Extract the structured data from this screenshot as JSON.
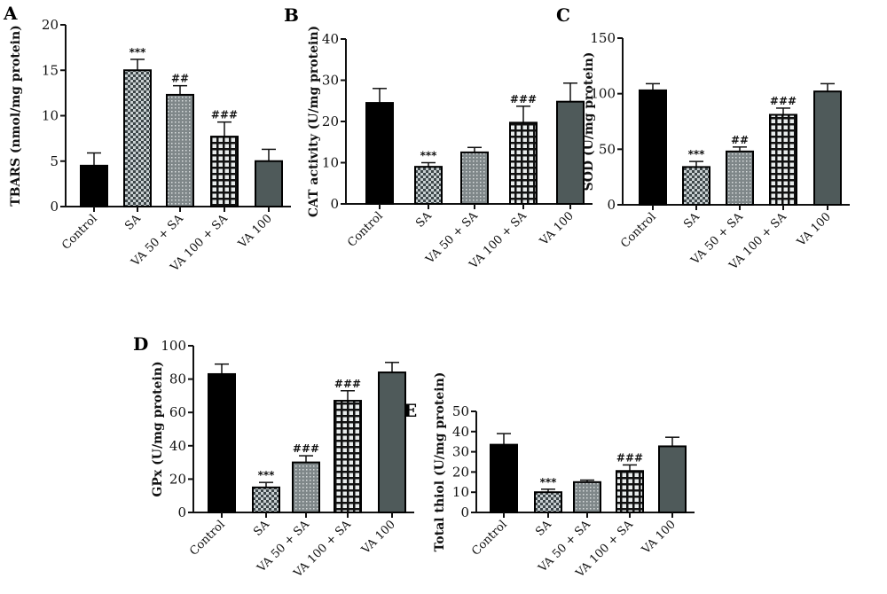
{
  "chart_data": [
    {
      "type": "bar",
      "panel_label": "A",
      "ylabel": "TBARS (nmol/mg protein)",
      "ylim": [
        0,
        20
      ],
      "yticks": [
        0,
        5,
        10,
        15,
        20
      ],
      "categories": [
        "Control",
        "SA",
        "VA 50 + SA",
        "VA 100 + SA",
        "VA 100"
      ],
      "values": [
        4.5,
        15,
        12.3,
        7.7,
        5
      ],
      "errors": [
        1.4,
        1.2,
        1,
        1.6,
        1.3
      ],
      "annotations": [
        "",
        "***",
        "##",
        "###",
        ""
      ]
    },
    {
      "type": "bar",
      "panel_label": "B",
      "ylabel": "CAT activity (U/mg protein)",
      "ylim": [
        0,
        40
      ],
      "yticks": [
        0,
        10,
        20,
        30,
        40
      ],
      "categories": [
        "Control",
        "SA",
        "VA 50 + SA",
        "VA 100 + SA",
        "VA 100"
      ],
      "values": [
        24.5,
        9,
        12.5,
        19.7,
        24.8
      ],
      "errors": [
        3.5,
        1,
        1.2,
        4,
        4.5
      ],
      "annotations": [
        "",
        "***",
        "",
        "###",
        ""
      ]
    },
    {
      "type": "bar",
      "panel_label": "C",
      "ylabel": "SOD (U/mg protein)",
      "ylim": [
        0,
        150
      ],
      "yticks": [
        0,
        50,
        100,
        150
      ],
      "categories": [
        "Control",
        "SA",
        "VA 50 + SA",
        "VA 100 + SA",
        "VA 100"
      ],
      "values": [
        103,
        34,
        48,
        81,
        102
      ],
      "errors": [
        6,
        5,
        4,
        6,
        7
      ],
      "annotations": [
        "",
        "***",
        "##",
        "###",
        ""
      ]
    },
    {
      "type": "bar",
      "panel_label": "D",
      "ylabel": "GPx (U/mg protein)",
      "ylim": [
        0,
        100
      ],
      "yticks": [
        0,
        20,
        40,
        60,
        80,
        100
      ],
      "categories": [
        "Control",
        "SA",
        "VA 50 + SA",
        "VA 100 + SA",
        "VA 100"
      ],
      "values": [
        83,
        15,
        30,
        67,
        84
      ],
      "errors": [
        6,
        3,
        4,
        6,
        6
      ],
      "annotations": [
        "",
        "***",
        "###",
        "###",
        ""
      ]
    },
    {
      "type": "bar",
      "panel_label": "E",
      "ylabel": "Total thiol (U/mg protein)",
      "ylim": [
        0,
        50
      ],
      "yticks": [
        0,
        10,
        20,
        30,
        40,
        50
      ],
      "categories": [
        "Control",
        "SA",
        "VA 50 + SA",
        "VA 100 + SA",
        "VA 100"
      ],
      "values": [
        33.5,
        10,
        15,
        20.5,
        32.7
      ],
      "errors": [
        5.5,
        1.5,
        1,
        3,
        4.5
      ],
      "annotations": [
        "",
        "***",
        "",
        "###",
        ""
      ]
    }
  ],
  "bar_styles": [
    {
      "group": "Control",
      "fill": "#000000",
      "pattern": "solid"
    },
    {
      "group": "SA",
      "fill": "#5a6468",
      "pattern": "checker"
    },
    {
      "group": "VA 50 + SA",
      "fill": "#8a9294",
      "pattern": "dots"
    },
    {
      "group": "VA 100 + SA",
      "fill": "#1a1a1a",
      "pattern": "grid"
    },
    {
      "group": "VA 100",
      "fill": "#4f5a5a",
      "pattern": "solid"
    }
  ]
}
